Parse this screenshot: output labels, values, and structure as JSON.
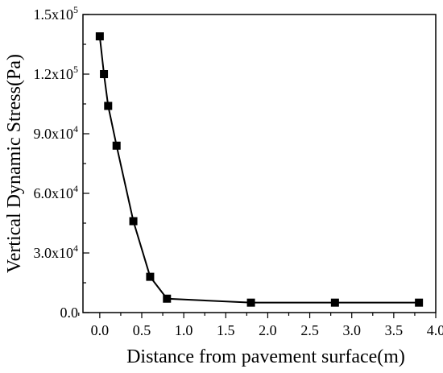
{
  "chart_data": {
    "type": "line",
    "title": "",
    "xlabel": "Distance from pavement surface(m)",
    "ylabel": "Vertical Dynamic Stress(Pa)",
    "xlim": [
      -0.2,
      4.0
    ],
    "ylim": [
      0,
      150000
    ],
    "x_ticks": [
      0.0,
      0.5,
      1.0,
      1.5,
      2.0,
      2.5,
      3.0,
      3.5,
      4.0
    ],
    "x_tick_labels": [
      "0.0",
      "0.5",
      "1.0",
      "1.5",
      "2.0",
      "2.5",
      "3.0",
      "3.5",
      "4.0"
    ],
    "y_ticks": [
      0,
      30000,
      60000,
      90000,
      120000,
      150000
    ],
    "y_tick_labels": [
      {
        "mantissa": "0.0",
        "exp": ""
      },
      {
        "mantissa": "3.0x10",
        "exp": "4"
      },
      {
        "mantissa": "6.0x10",
        "exp": "4"
      },
      {
        "mantissa": "9.0x10",
        "exp": "4"
      },
      {
        "mantissa": "1.2x10",
        "exp": "5"
      },
      {
        "mantissa": "1.5x10",
        "exp": "5"
      }
    ],
    "grid": false,
    "marker": "square",
    "color": "#000000",
    "series": [
      {
        "x": [
          0.0,
          0.05,
          0.1,
          0.2,
          0.4,
          0.6,
          0.8,
          1.8,
          2.8,
          3.8
        ],
        "y": [
          139000,
          120000,
          104000,
          84000,
          46000,
          18000,
          7000,
          5000,
          5000,
          5000
        ]
      }
    ]
  }
}
